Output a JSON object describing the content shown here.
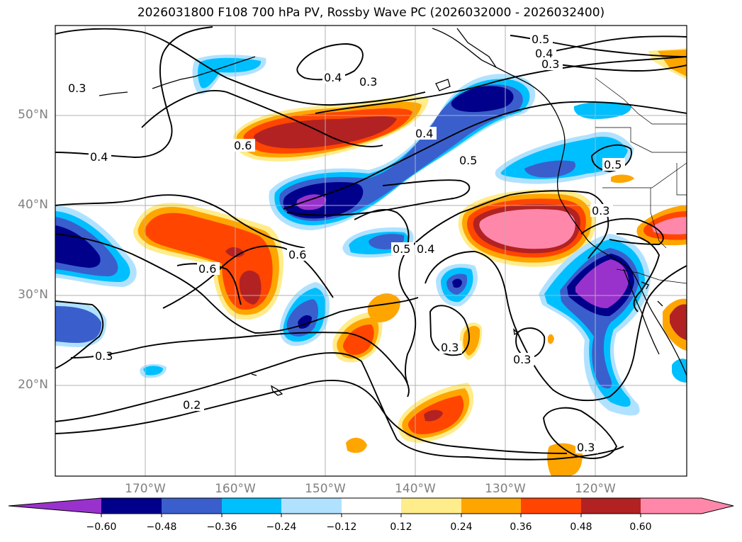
{
  "title": "2026031800 F108 700 hPa PV, Rossby Wave PC (2026032000 - 2026032400)",
  "map": {
    "lat_labels": [
      "50°N",
      "40°N",
      "30°N",
      "20°N"
    ],
    "lon_labels": [
      "170°W",
      "160°W",
      "150°W",
      "140°W",
      "130°W",
      "120°W"
    ],
    "contour_labels": [
      "0.4",
      "0.3",
      "0.5",
      "0.4",
      "0.3",
      "0.3",
      "0.4",
      "0.6",
      "0.4",
      "0.5",
      "0.5",
      "0.3",
      "0.6",
      "0.6",
      "0.5",
      "0.4",
      "0.3",
      "0.3",
      "0.3",
      "0.2",
      "0.3"
    ]
  },
  "colorbar": {
    "tick_labels": [
      "−0.60",
      "−0.48",
      "−0.36",
      "−0.24",
      "−0.12",
      "0.12",
      "0.24",
      "0.36",
      "0.48",
      "0.60"
    ],
    "colors": [
      "#9932cc",
      "#00008b",
      "#3a5fcd",
      "#00bfff",
      "#b0e2ff",
      "#ffffff",
      "#ffec8b",
      "#ffa500",
      "#ff4500",
      "#b22222",
      "#ff88aa"
    ]
  }
}
